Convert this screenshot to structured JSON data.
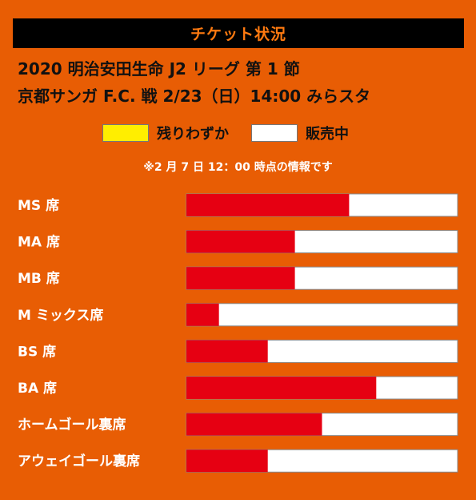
{
  "header": {
    "title": "チケット状況"
  },
  "match": {
    "line1": "2020 明治安田生命 J2 リーグ 第 1 節",
    "line2": "京都サンガ F.C. 戦 2/23（日）14:00 みらスタ"
  },
  "legend": [
    {
      "label": "残りわずか",
      "color": "#ffee00"
    },
    {
      "label": "販売中",
      "color": "#ffffff"
    }
  ],
  "note": "※2 月 7 日 12：00 時点の情報です",
  "colors": {
    "background": "#e85d04",
    "fill": "#e60012",
    "track": "#ffffff"
  },
  "chart_data": {
    "type": "bar",
    "orientation": "horizontal",
    "categories": [
      "MS 席",
      "MA 席",
      "MB 席",
      "M ミックス席",
      "BS 席",
      "BA 席",
      "ホームゴール裏席",
      "アウェイゴール裏席"
    ],
    "values": [
      0.6,
      0.4,
      0.4,
      0.12,
      0.3,
      0.7,
      0.5,
      0.3
    ],
    "xlim": [
      0,
      1
    ]
  }
}
